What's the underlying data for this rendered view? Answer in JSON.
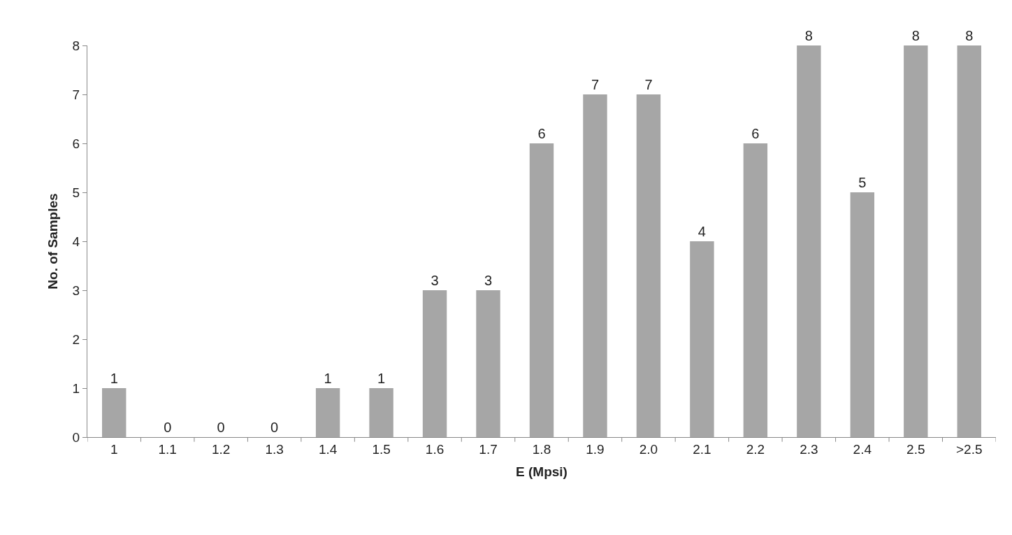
{
  "chart_data": {
    "type": "bar",
    "xlabel": "E (Mpsi)",
    "ylabel": "No. of Samples",
    "categories": [
      "1",
      "1.1",
      "1.2",
      "1.3",
      "1.4",
      "1.5",
      "1.6",
      "1.7",
      "1.8",
      "1.9",
      "2.0",
      "2.1",
      "2.2",
      "2.3",
      "2.4",
      "2.5",
      ">2.5"
    ],
    "values": [
      1,
      0,
      0,
      0,
      1,
      1,
      3,
      3,
      6,
      7,
      7,
      4,
      6,
      8,
      5,
      8,
      8
    ],
    "color": "#a6a6a6",
    "ylim": [
      0,
      8
    ],
    "yticks": [
      0,
      1,
      2,
      3,
      4,
      5,
      6,
      7,
      8
    ],
    "data_labels": true
  }
}
